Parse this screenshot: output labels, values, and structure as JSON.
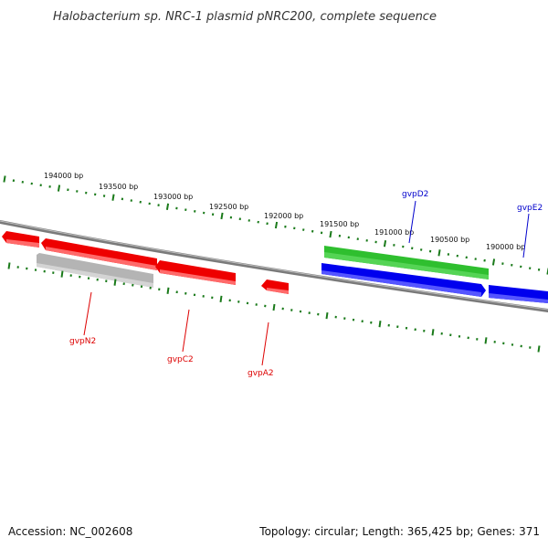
{
  "title": "Halobacterium sp. NRC-1 plasmid pNRC200, complete sequence",
  "footer": {
    "accession": "Accession: NC_002608",
    "summary": "Topology: circular; Length: 365,425 bp; Genes: 371"
  },
  "colors": {
    "forward": "#2fbf2f",
    "reverse": "#ff0000",
    "blue": "#0000ee",
    "gray": "#b4b4b4",
    "backbone": "#7a7a7a",
    "ticks": "#1a7a1a",
    "label_red": "#dd0000",
    "label_blue": "#0000cc"
  },
  "scale_ticks": [
    "194000 bp",
    "193500 bp",
    "193000 bp",
    "192500 bp",
    "192000 bp",
    "191500 bp",
    "191000 bp",
    "190500 bp",
    "190000 bp"
  ],
  "gene_labels": {
    "gvpD2": "gvpD2",
    "gvpE2": "gvpE2",
    "gvpN2": "gvpN2",
    "gvpC2": "gvpC2",
    "gvpA2": "gvpA2"
  }
}
